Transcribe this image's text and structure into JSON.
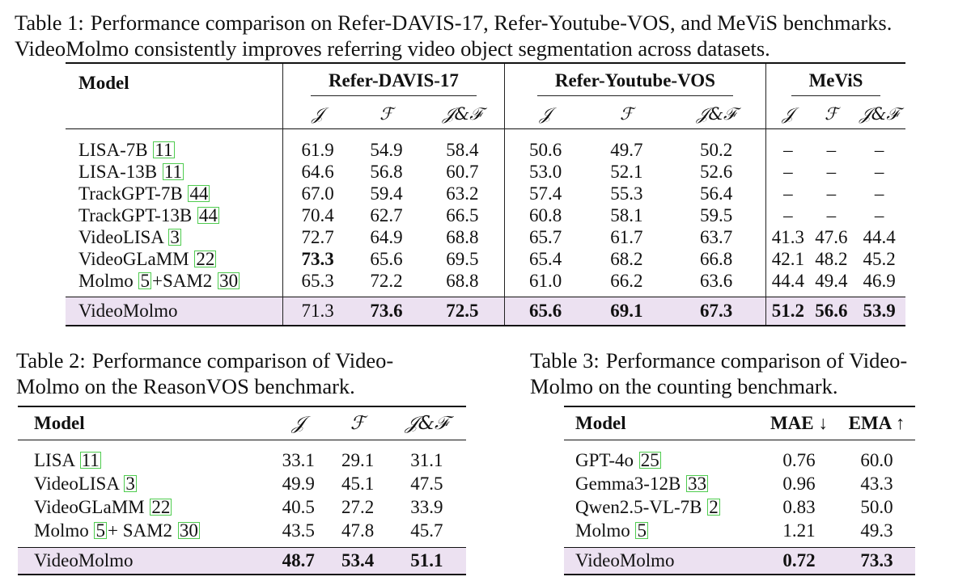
{
  "table1": {
    "caption_label": "Table 1:",
    "caption_line1": "Performance comparison on Refer-DAVIS-17, Refer-Youtube-VOS, and MeViS benchmarks.",
    "caption_line2": "VideoMolmo consistently improves referring video object segmentation across datasets.",
    "model_header": "Model",
    "groups": [
      "Refer-DAVIS-17",
      "Refer-Youtube-VOS",
      "MeViS"
    ],
    "metrics": [
      "𝒥",
      "ℱ",
      "𝒥&ℱ"
    ],
    "rows": [
      {
        "name": "LISA-7B",
        "cite": "11",
        "vals": [
          "61.9",
          "54.9",
          "58.4",
          "50.6",
          "49.7",
          "50.2",
          "–",
          "–",
          "–"
        ]
      },
      {
        "name": "LISA-13B",
        "cite": "11",
        "vals": [
          "64.6",
          "56.8",
          "60.7",
          "53.0",
          "52.1",
          "52.6",
          "–",
          "–",
          "–"
        ]
      },
      {
        "name": "TrackGPT-7B",
        "cite": "44",
        "vals": [
          "67.0",
          "59.4",
          "63.2",
          "57.4",
          "55.3",
          "56.4",
          "–",
          "–",
          "–"
        ]
      },
      {
        "name": "TrackGPT-13B",
        "cite": "44",
        "vals": [
          "70.4",
          "62.7",
          "66.5",
          "60.8",
          "58.1",
          "59.5",
          "–",
          "–",
          "–"
        ]
      },
      {
        "name": "VideoLISA",
        "cite": "3",
        "vals": [
          "72.7",
          "64.9",
          "68.8",
          "65.7",
          "61.7",
          "63.7",
          "41.3",
          "47.6",
          "44.4"
        ]
      },
      {
        "name": "VideoGLaMM",
        "cite": "22",
        "vals": [
          "73.3",
          "65.6",
          "69.5",
          "65.4",
          "68.2",
          "66.8",
          "42.1",
          "48.2",
          "45.2"
        ]
      },
      {
        "name": "Molmo",
        "cite": "5",
        "name2": "+SAM2",
        "cite2": "30",
        "vals": [
          "65.3",
          "72.2",
          "68.8",
          "61.0",
          "66.2",
          "63.6",
          "44.4",
          "49.4",
          "46.9"
        ]
      }
    ],
    "ours": {
      "name": "VideoMolmo",
      "vals": [
        "71.3",
        "73.6",
        "72.5",
        "65.6",
        "69.1",
        "67.3",
        "51.2",
        "56.6",
        "53.9"
      ]
    }
  },
  "table2": {
    "caption_label": "Table 2:",
    "caption_line1": "Performance comparison of Video-",
    "caption_line2": "Molmo on the ReasonVOS benchmark.",
    "model_header": "Model",
    "metrics": [
      "𝒥",
      "ℱ",
      "𝒥&ℱ"
    ],
    "rows": [
      {
        "name": "LISA",
        "cite": "11",
        "vals": [
          "33.1",
          "29.1",
          "31.1"
        ]
      },
      {
        "name": "VideoLISA",
        "cite": "3",
        "vals": [
          "49.9",
          "45.1",
          "47.5"
        ]
      },
      {
        "name": "VideoGLaMM",
        "cite": "22",
        "vals": [
          "40.5",
          "27.2",
          "33.9"
        ]
      },
      {
        "name": "Molmo",
        "cite": "5",
        "name2": "+ SAM2",
        "cite2": "30",
        "vals": [
          "43.5",
          "47.8",
          "45.7"
        ]
      }
    ],
    "ours": {
      "name": "VideoMolmo",
      "vals": [
        "48.7",
        "53.4",
        "51.1"
      ]
    }
  },
  "table3": {
    "caption_label": "Table 3:",
    "caption_line1": "Performance comparison of Video-",
    "caption_line2": "Molmo on the counting benchmark.",
    "model_header": "Model",
    "metrics": [
      "MAE ↓",
      "EMA ↑"
    ],
    "rows": [
      {
        "name": "GPT-4o",
        "cite": "25",
        "vals": [
          "0.76",
          "60.0"
        ]
      },
      {
        "name": "Gemma3-12B",
        "cite": "33",
        "vals": [
          "0.96",
          "43.3"
        ]
      },
      {
        "name": "Qwen2.5-VL-7B",
        "cite": "2",
        "vals": [
          "0.83",
          "50.0"
        ]
      },
      {
        "name": "Molmo",
        "cite": "5",
        "vals": [
          "1.21",
          "49.3"
        ]
      }
    ],
    "ours": {
      "name": "VideoMolmo",
      "vals": [
        "0.72",
        "73.3"
      ]
    }
  }
}
